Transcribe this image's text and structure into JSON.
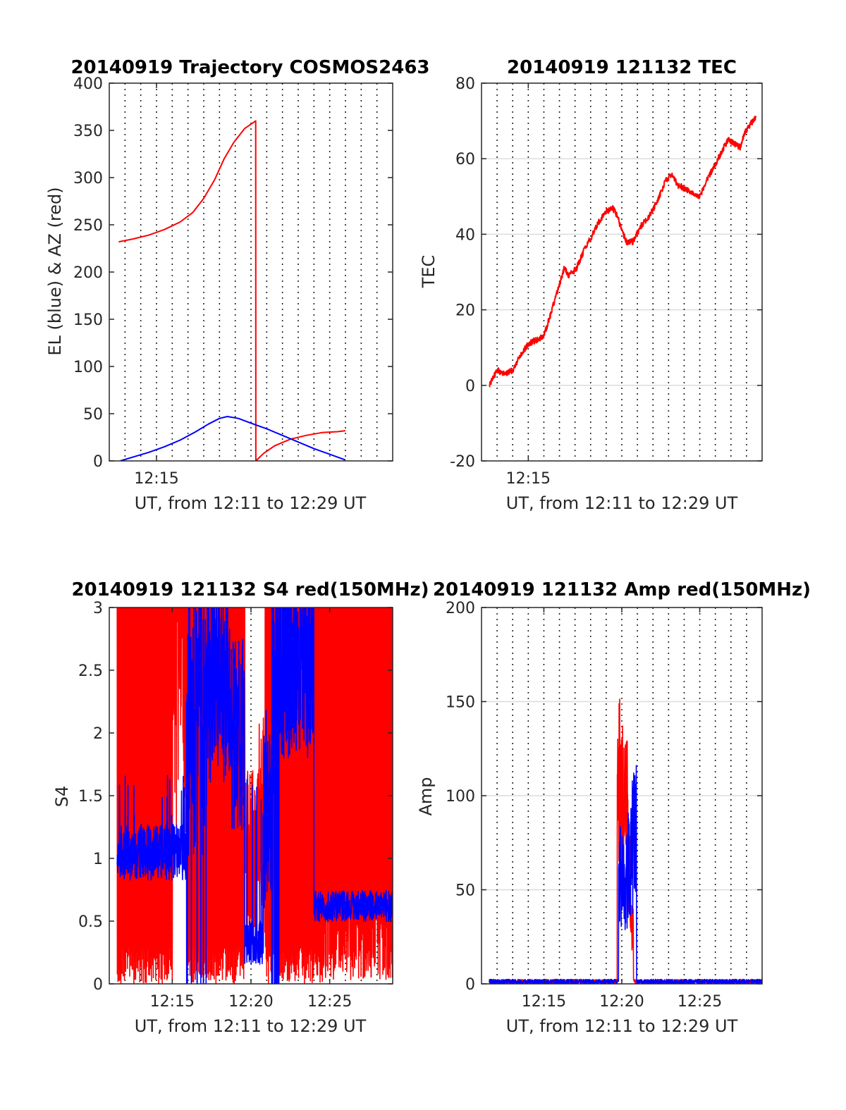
{
  "colors": {
    "red": "#ff0000",
    "blue": "#0000ff",
    "grid": "#dcdcdc"
  },
  "chart_data": [
    {
      "type": "line",
      "title": "20140919 Trajectory COSMOS2463",
      "xlabel": "UT, from 12:11 to 12:29 UT",
      "ylabel": "EL (blue) & AZ (red)",
      "xlim": [
        12.0,
        30.0
      ],
      "ylim": [
        0,
        400
      ],
      "yticks": [
        0,
        50,
        100,
        150,
        200,
        250,
        300,
        350,
        400
      ],
      "xticks": [
        {
          "x": 15,
          "label": "12:15"
        }
      ],
      "vgrid": [
        13,
        14,
        15,
        16,
        17,
        18,
        19,
        20,
        21,
        22,
        23,
        24,
        25,
        26,
        27,
        28,
        29
      ],
      "hgrid": false,
      "series": [
        {
          "color": "red",
          "points": [
            [
              12.6,
              232
            ],
            [
              13.5,
              235
            ],
            [
              14.5,
              239
            ],
            [
              15.5,
              245
            ],
            [
              16.5,
              253
            ],
            [
              17.3,
              263
            ],
            [
              18.0,
              278
            ],
            [
              18.7,
              298
            ],
            [
              19.3,
              320
            ],
            [
              19.9,
              337
            ],
            [
              20.6,
              352
            ],
            [
              21.3,
              360
            ],
            [
              21.31,
              0
            ],
            [
              21.8,
              8
            ],
            [
              22.5,
              16
            ],
            [
              23.5,
              23
            ],
            [
              24.5,
              27
            ],
            [
              25.5,
              30
            ],
            [
              26.5,
              31
            ],
            [
              27.0,
              32
            ]
          ]
        },
        {
          "color": "blue",
          "points": [
            [
              12.7,
              0
            ],
            [
              13.5,
              4
            ],
            [
              14.5,
              9
            ],
            [
              15.5,
              15
            ],
            [
              16.5,
              22
            ],
            [
              17.5,
              31
            ],
            [
              18.3,
              39
            ],
            [
              19.0,
              45
            ],
            [
              19.5,
              47
            ],
            [
              20.2,
              45
            ],
            [
              21.0,
              40
            ],
            [
              22.0,
              34
            ],
            [
              23.0,
              27
            ],
            [
              24.0,
              20
            ],
            [
              25.0,
              13
            ],
            [
              26.0,
              7
            ],
            [
              27.0,
              1
            ]
          ]
        }
      ]
    },
    {
      "type": "line",
      "title": "20140919 121132 TEC",
      "xlabel": "UT, from 12:11 to 12:29 UT",
      "ylabel": "TEC",
      "xlim": [
        12.0,
        30.0
      ],
      "ylim": [
        -20,
        80
      ],
      "yticks": [
        -20,
        0,
        20,
        40,
        60,
        80
      ],
      "xticks": [
        {
          "x": 15,
          "label": "12:15"
        }
      ],
      "vgrid": [
        13,
        14,
        15,
        16,
        17,
        18,
        19,
        20,
        21,
        22,
        23,
        24,
        25,
        26,
        27,
        28,
        29
      ],
      "hgrid": true,
      "series": [
        {
          "color": "red",
          "noise": 0.8,
          "points": [
            [
              12.5,
              0
            ],
            [
              13.0,
              4
            ],
            [
              13.5,
              3
            ],
            [
              14.0,
              4
            ],
            [
              14.5,
              8
            ],
            [
              15.0,
              11
            ],
            [
              15.5,
              12
            ],
            [
              16.0,
              13
            ],
            [
              16.3,
              17
            ],
            [
              16.8,
              24
            ],
            [
              17.3,
              31
            ],
            [
              17.6,
              29
            ],
            [
              18.1,
              31
            ],
            [
              18.5,
              35
            ],
            [
              19.0,
              39
            ],
            [
              19.5,
              43
            ],
            [
              20.0,
              46
            ],
            [
              20.4,
              47
            ],
            [
              20.7,
              45
            ],
            [
              21.0,
              41
            ],
            [
              21.3,
              38
            ],
            [
              21.7,
              38
            ],
            [
              22.2,
              42
            ],
            [
              22.8,
              45
            ],
            [
              23.3,
              49
            ],
            [
              23.8,
              54
            ],
            [
              24.2,
              56
            ],
            [
              24.6,
              53
            ],
            [
              25.1,
              52
            ],
            [
              25.6,
              51
            ],
            [
              26.0,
              50
            ],
            [
              26.3,
              53
            ],
            [
              26.8,
              57
            ],
            [
              27.3,
              61
            ],
            [
              27.8,
              65
            ],
            [
              28.2,
              64
            ],
            [
              28.6,
              63
            ],
            [
              28.9,
              67
            ],
            [
              29.4,
              70
            ],
            [
              29.6,
              71
            ]
          ]
        }
      ]
    },
    {
      "type": "line",
      "title": "20140919 121132 S4 red(150MHz)",
      "xlabel": "UT, from 12:11 to 12:29 UT",
      "ylabel": "S4",
      "xlim": [
        11.0,
        29.0
      ],
      "ylim": [
        0,
        3
      ],
      "yticks": [
        0,
        0.5,
        1,
        1.5,
        2,
        2.5,
        3
      ],
      "yticklabels": [
        "0",
        "0.5",
        "1",
        "1.5",
        "2",
        "2.5",
        "3"
      ],
      "xticks": [
        {
          "x": 15,
          "label": "12:15"
        },
        {
          "x": 20,
          "label": "12:20"
        },
        {
          "x": 25,
          "label": "12:25"
        }
      ],
      "vgrid": [
        12,
        13,
        14,
        15,
        16,
        17,
        18,
        19,
        20,
        21,
        22,
        23,
        24,
        25,
        26,
        27,
        28
      ],
      "hgrid": false,
      "series": [
        {
          "color": "red",
          "style": "spikes",
          "seed": 7,
          "x0": 11.5,
          "x1": 29.0
        },
        {
          "color": "blue",
          "style": "noisy",
          "seed": 11,
          "x0": 11.5,
          "x1": 29.0
        }
      ]
    },
    {
      "type": "line",
      "title": "20140919 121132 Amp red(150MHz)",
      "xlabel": "UT, from 12:11 to 12:29 UT",
      "ylabel": "Amp",
      "xlim": [
        11.0,
        29.0
      ],
      "ylim": [
        0,
        200
      ],
      "yticks": [
        0,
        50,
        100,
        150,
        200
      ],
      "xticks": [
        {
          "x": 15,
          "label": "12:15"
        },
        {
          "x": 20,
          "label": "12:20"
        },
        {
          "x": 25,
          "label": "12:25"
        }
      ],
      "vgrid": [
        12,
        13,
        14,
        15,
        16,
        17,
        18,
        19,
        20,
        21,
        22,
        23,
        24,
        25,
        26,
        27,
        28
      ],
      "hgrid": true,
      "series": [
        {
          "color": "red",
          "style": "burst",
          "seed": 3,
          "x0": 11.5,
          "x1": 29.0,
          "burst": [
            [
              19.8,
              150
            ],
            [
              20.05,
              135
            ],
            [
              20.35,
              125
            ],
            [
              20.6,
              40
            ]
          ]
        },
        {
          "color": "blue",
          "style": "burst",
          "seed": 5,
          "x0": 11.5,
          "x1": 29.0,
          "burst": [
            [
              19.9,
              80
            ],
            [
              20.2,
              70
            ],
            [
              20.5,
              95
            ],
            [
              20.8,
              112
            ]
          ]
        }
      ]
    }
  ]
}
